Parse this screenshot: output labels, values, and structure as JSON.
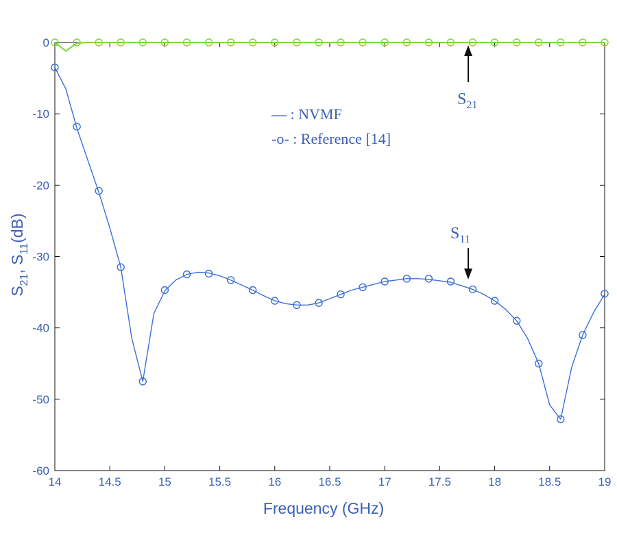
{
  "chart_data": {
    "type": "line",
    "xlabel": "Frequency (GHz)",
    "ylabel": {
      "prefix": "S",
      "sub1": "21",
      "sep": ", S",
      "sub2": "11",
      "suffix": "(dB)"
    },
    "xlim": [
      14,
      19
    ],
    "ylim": [
      -60,
      0
    ],
    "x_ticks": [
      "14",
      "14.5",
      "15",
      "15.5",
      "16",
      "16.5",
      "17",
      "17.5",
      "18",
      "18.5",
      "19"
    ],
    "y_ticks": [
      "0",
      "-10",
      "-20",
      "-30",
      "-40",
      "-50",
      "-60"
    ],
    "grid": false,
    "legend": {
      "placement": "upper-center",
      "entries": [
        {
          "symbol": "—",
          "text": ": NVMF"
        },
        {
          "symbol": "-o-",
          "text": ": Reference [14]"
        }
      ]
    },
    "annotations": {
      "s21": {
        "base": "S",
        "sub": "21"
      },
      "s11": {
        "base": "S",
        "sub": "11"
      }
    },
    "colors": {
      "s11": "#3a6fd8",
      "s21": "#7fd63a",
      "axis_text": "#3a5fb8"
    },
    "series": [
      {
        "name": "S11 NVMF",
        "marker": "none",
        "points": [
          [
            14.0,
            -3.5
          ],
          [
            14.1,
            -6.5
          ],
          [
            14.2,
            -12.0
          ],
          [
            14.3,
            -16.5
          ],
          [
            14.4,
            -21.0
          ],
          [
            14.5,
            -26.0
          ],
          [
            14.6,
            -31.5
          ],
          [
            14.7,
            -41.5
          ],
          [
            14.8,
            -47.5
          ],
          [
            14.9,
            -38.0
          ],
          [
            15.0,
            -34.8
          ],
          [
            15.1,
            -33.3
          ],
          [
            15.2,
            -32.5
          ],
          [
            15.3,
            -32.2
          ],
          [
            15.4,
            -32.3
          ],
          [
            15.5,
            -32.7
          ],
          [
            15.6,
            -33.3
          ],
          [
            15.7,
            -34.0
          ],
          [
            15.8,
            -34.7
          ],
          [
            15.9,
            -35.5
          ],
          [
            16.0,
            -36.2
          ],
          [
            16.1,
            -36.6
          ],
          [
            16.2,
            -36.8
          ],
          [
            16.3,
            -36.8
          ],
          [
            16.4,
            -36.5
          ],
          [
            16.5,
            -35.9
          ],
          [
            16.6,
            -35.3
          ],
          [
            16.7,
            -34.7
          ],
          [
            16.8,
            -34.3
          ],
          [
            16.9,
            -33.9
          ],
          [
            17.0,
            -33.5
          ],
          [
            17.1,
            -33.3
          ],
          [
            17.2,
            -33.1
          ],
          [
            17.3,
            -33.1
          ],
          [
            17.4,
            -33.2
          ],
          [
            17.5,
            -33.4
          ],
          [
            17.6,
            -33.6
          ],
          [
            17.7,
            -34.1
          ],
          [
            17.8,
            -34.6
          ],
          [
            17.9,
            -35.3
          ],
          [
            18.0,
            -36.2
          ],
          [
            18.1,
            -37.4
          ],
          [
            18.2,
            -39.0
          ],
          [
            18.3,
            -41.5
          ],
          [
            18.4,
            -45.0
          ],
          [
            18.5,
            -50.8
          ],
          [
            18.6,
            -52.8
          ],
          [
            18.7,
            -45.5
          ],
          [
            18.8,
            -41.0
          ],
          [
            18.9,
            -37.8
          ],
          [
            19.0,
            -35.3
          ]
        ]
      },
      {
        "name": "S11 Reference [14]",
        "marker": "circle",
        "points": [
          [
            14.0,
            -3.5
          ],
          [
            14.2,
            -11.8
          ],
          [
            14.4,
            -20.8
          ],
          [
            14.6,
            -31.5
          ],
          [
            14.8,
            -47.5
          ],
          [
            15.0,
            -34.7
          ],
          [
            15.2,
            -32.5
          ],
          [
            15.4,
            -32.4
          ],
          [
            15.6,
            -33.3
          ],
          [
            15.8,
            -34.7
          ],
          [
            16.0,
            -36.2
          ],
          [
            16.2,
            -36.8
          ],
          [
            16.4,
            -36.5
          ],
          [
            16.6,
            -35.3
          ],
          [
            16.8,
            -34.3
          ],
          [
            17.0,
            -33.5
          ],
          [
            17.2,
            -33.1
          ],
          [
            17.4,
            -33.1
          ],
          [
            17.6,
            -33.5
          ],
          [
            17.8,
            -34.6
          ],
          [
            18.0,
            -36.2
          ],
          [
            18.2,
            -39.0
          ],
          [
            18.4,
            -45.0
          ],
          [
            18.6,
            -52.8
          ],
          [
            18.8,
            -41.0
          ],
          [
            19.0,
            -35.2
          ]
        ]
      },
      {
        "name": "S21 NVMF",
        "marker": "none",
        "points": [
          [
            14.0,
            0.0
          ],
          [
            14.1,
            -1.2
          ],
          [
            14.2,
            -0.1
          ],
          [
            14.3,
            0.0
          ],
          [
            19.0,
            0.0
          ]
        ]
      },
      {
        "name": "S21 Reference [14]",
        "marker": "circle",
        "points": [
          [
            14.0,
            0.0
          ],
          [
            14.2,
            0.0
          ],
          [
            14.4,
            0.0
          ],
          [
            14.6,
            0.0
          ],
          [
            14.8,
            0.0
          ],
          [
            15.0,
            0.0
          ],
          [
            15.2,
            0.0
          ],
          [
            15.4,
            0.0
          ],
          [
            15.6,
            0.0
          ],
          [
            15.8,
            0.0
          ],
          [
            16.0,
            0.0
          ],
          [
            16.2,
            0.0
          ],
          [
            16.4,
            0.0
          ],
          [
            16.6,
            0.0
          ],
          [
            16.8,
            0.0
          ],
          [
            17.0,
            0.0
          ],
          [
            17.2,
            0.0
          ],
          [
            17.4,
            0.0
          ],
          [
            17.6,
            0.0
          ],
          [
            17.8,
            0.0
          ],
          [
            18.0,
            0.0
          ],
          [
            18.2,
            0.0
          ],
          [
            18.4,
            0.0
          ],
          [
            18.6,
            0.0
          ],
          [
            18.8,
            0.0
          ],
          [
            19.0,
            0.0
          ]
        ]
      }
    ]
  }
}
